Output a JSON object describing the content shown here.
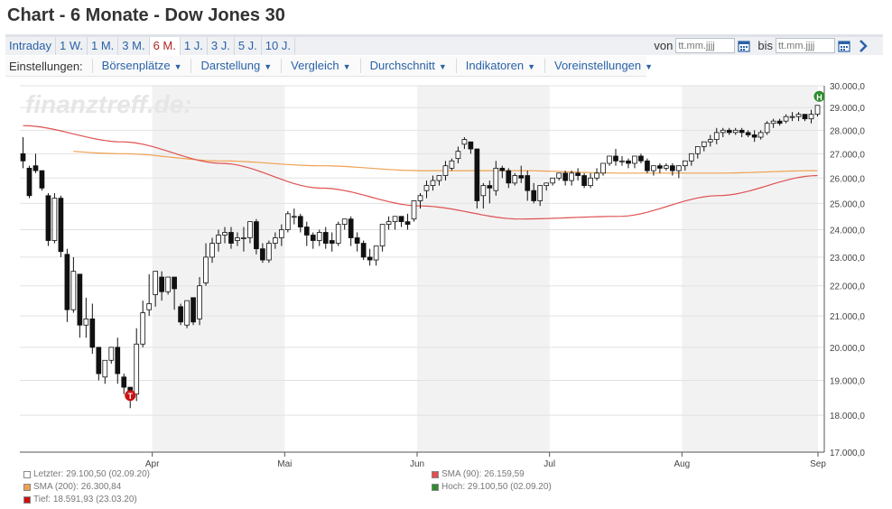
{
  "title": "Chart - 6 Monate - Dow Jones 30",
  "ranges": [
    "Intraday",
    "1 W.",
    "1 M.",
    "3 M.",
    "6 M.",
    "1 J.",
    "3 J.",
    "5 J.",
    "10 J."
  ],
  "active_range": "6 M.",
  "date_from_label": "von",
  "date_to_label": "bis",
  "date_placeholder": "tt.mm.jjjj",
  "settings_label": "Einstellungen:",
  "menu": [
    "Börsenplätze",
    "Darstellung",
    "Vergleich",
    "Durchschnitt",
    "Indikatoren",
    "Voreinstellungen"
  ],
  "watermark": "finanztreff.de:",
  "legend": {
    "last": "Letzter: 29.100,50 (02.09.20)",
    "sma200": "SMA (200): 26.300,84",
    "low": "Tief: 18.591,93 (23.03.20)",
    "sma90": "SMA (90): 26.159,59",
    "high": "Hoch: 29.100,50 (02.09.20)"
  },
  "colors": {
    "sma200": "#f0a050",
    "sma90": "#e05050",
    "high_marker": "#2e8b2e",
    "low_marker": "#cc1111",
    "band": "#f2f2f2",
    "link": "#2a62a8"
  },
  "chart_data": {
    "type": "candlestick",
    "ylim": [
      17000,
      30000
    ],
    "y_ticks": [
      17000,
      18000,
      19000,
      20000,
      21000,
      22000,
      23000,
      24000,
      25000,
      26000,
      27000,
      28000,
      29000,
      30000
    ],
    "y_tick_labels": [
      "17.000,0",
      "18.000,0",
      "19.000,0",
      "20.000,0",
      "21.000,0",
      "22.000,0",
      "23.000,0",
      "24.000,0",
      "25.000,0",
      "26.000,0",
      "27.000,0",
      "28.000,0",
      "29.000,0",
      "30.000,0"
    ],
    "x_month_labels": [
      "Apr",
      "Mai",
      "Jun",
      "Jul",
      "Aug",
      "Sep"
    ],
    "candles": [
      [
        27000,
        27700,
        26700,
        26400
      ],
      [
        26400,
        26500,
        25300,
        25200
      ],
      [
        26500,
        27000,
        26300,
        26200
      ],
      [
        26300,
        26300,
        25600,
        25500
      ],
      [
        25300,
        25400,
        23600,
        23400
      ],
      [
        23600,
        25400,
        25200,
        23500
      ],
      [
        25200,
        25300,
        23200,
        23000
      ],
      [
        23100,
        23300,
        21200,
        20800
      ],
      [
        21200,
        23000,
        22500,
        21100
      ],
      [
        22400,
        22400,
        20700,
        20300
      ],
      [
        20700,
        21600,
        20900,
        20300
      ],
      [
        20900,
        21400,
        20000,
        19800
      ],
      [
        20000,
        20000,
        19200,
        19000
      ],
      [
        19100,
        19600,
        19600,
        18900
      ],
      [
        19600,
        19800,
        20000,
        19500
      ],
      [
        20000,
        20300,
        19200,
        18900
      ],
      [
        19100,
        19200,
        18800,
        18600
      ],
      [
        18800,
        18800,
        18600,
        18200
      ],
      [
        18600,
        20600,
        20100,
        18400
      ],
      [
        20100,
        21500,
        21100,
        20000
      ],
      [
        21200,
        22400,
        21400,
        21000
      ],
      [
        21700,
        22400,
        22500,
        21300
      ],
      [
        22300,
        22500,
        21800,
        21500
      ],
      [
        21800,
        22200,
        22300,
        21700
      ],
      [
        22300,
        22100,
        21900,
        21200
      ],
      [
        21300,
        21400,
        20800,
        20700
      ],
      [
        20700,
        20900,
        21500,
        20600
      ],
      [
        21600,
        21300,
        20800,
        20700
      ],
      [
        20900,
        22300,
        22000,
        20700
      ],
      [
        22100,
        23500,
        23000,
        22000
      ],
      [
        23000,
        23700,
        23500,
        22800
      ],
      [
        23500,
        24000,
        23800,
        23200
      ],
      [
        23800,
        24100,
        23900,
        23500
      ],
      [
        23900,
        24100,
        23500,
        23300
      ],
      [
        23600,
        23900,
        23700,
        23400
      ],
      [
        23700,
        24100,
        23700,
        23200
      ],
      [
        23700,
        24300,
        24300,
        23500
      ],
      [
        24300,
        24400,
        23300,
        23100
      ],
      [
        23300,
        23500,
        22900,
        22800
      ],
      [
        22900,
        23600,
        23500,
        22800
      ],
      [
        23500,
        23900,
        23700,
        23300
      ],
      [
        23700,
        24200,
        24000,
        23400
      ],
      [
        24000,
        24700,
        24600,
        23900
      ],
      [
        24500,
        24800,
        24500,
        24200
      ],
      [
        24500,
        24600,
        24100,
        23900
      ],
      [
        24100,
        24300,
        23800,
        23400
      ],
      [
        23800,
        23900,
        23600,
        23300
      ],
      [
        23600,
        24000,
        23900,
        23400
      ],
      [
        23900,
        24100,
        23500,
        23300
      ],
      [
        23600,
        23900,
        23500,
        23200
      ],
      [
        23500,
        24300,
        24200,
        23400
      ],
      [
        24200,
        24300,
        24400,
        24000
      ],
      [
        24400,
        24500,
        23700,
        23400
      ],
      [
        23700,
        23900,
        23500,
        23200
      ],
      [
        23500,
        23600,
        23000,
        22900
      ],
      [
        23000,
        23300,
        22900,
        22700
      ],
      [
        22900,
        23200,
        23400,
        22700
      ],
      [
        23400,
        23600,
        24200,
        23200
      ],
      [
        24200,
        24500,
        24300,
        24000
      ],
      [
        24300,
        24500,
        24500,
        24000
      ],
      [
        24500,
        24500,
        24300,
        24100
      ],
      [
        24300,
        24600,
        24200,
        24000
      ],
      [
        24400,
        24800,
        25100,
        24300
      ],
      [
        25100,
        25400,
        25300,
        24800
      ],
      [
        25500,
        25900,
        25700,
        25200
      ],
      [
        25700,
        26100,
        25900,
        25500
      ],
      [
        25900,
        26100,
        26100,
        25700
      ],
      [
        26100,
        26700,
        26500,
        25900
      ],
      [
        26400,
        26800,
        26700,
        26300
      ],
      [
        26800,
        27300,
        27100,
        26600
      ],
      [
        27400,
        27700,
        27600,
        27200
      ],
      [
        27500,
        27500,
        27200,
        27000
      ],
      [
        27200,
        27000,
        25100,
        24800
      ],
      [
        25300,
        25800,
        25700,
        24800
      ],
      [
        25700,
        25900,
        25600,
        25000
      ],
      [
        25500,
        26700,
        26400,
        25300
      ],
      [
        26400,
        26500,
        26300,
        26000
      ],
      [
        26300,
        26400,
        25800,
        25600
      ],
      [
        25800,
        26200,
        26100,
        25700
      ],
      [
        26100,
        26500,
        26000,
        25800
      ],
      [
        26100,
        26300,
        25500,
        25100
      ],
      [
        25500,
        25800,
        25100,
        25000
      ],
      [
        25100,
        25400,
        25700,
        24900
      ],
      [
        25700,
        25800,
        25800,
        25500
      ],
      [
        25800,
        26000,
        26000,
        25700
      ],
      [
        26000,
        26100,
        26200,
        25900
      ],
      [
        26200,
        26300,
        25900,
        25700
      ],
      [
        25900,
        26300,
        26200,
        25700
      ],
      [
        26200,
        26400,
        26100,
        25900
      ],
      [
        26100,
        26200,
        25700,
        25600
      ],
      [
        25700,
        26200,
        26000,
        25600
      ],
      [
        26000,
        26400,
        26200,
        25900
      ],
      [
        26200,
        26400,
        26600,
        26100
      ],
      [
        26600,
        26800,
        26900,
        26500
      ],
      [
        26900,
        27200,
        26700,
        26500
      ],
      [
        26700,
        26900,
        26700,
        26500
      ],
      [
        26700,
        26800,
        26600,
        26400
      ],
      [
        26600,
        26800,
        26900,
        26400
      ],
      [
        26900,
        27000,
        26700,
        26600
      ],
      [
        26700,
        26800,
        26300,
        26200
      ],
      [
        26300,
        26500,
        26500,
        26100
      ],
      [
        26500,
        26600,
        26400,
        26200
      ],
      [
        26400,
        26600,
        26500,
        26300
      ],
      [
        26500,
        26600,
        26300,
        26100
      ],
      [
        26300,
        26500,
        26500,
        26000
      ],
      [
        26500,
        26700,
        26700,
        26300
      ],
      [
        26700,
        26900,
        27000,
        26500
      ],
      [
        27000,
        27300,
        27300,
        26800
      ],
      [
        27300,
        27500,
        27500,
        27100
      ],
      [
        27500,
        27800,
        27600,
        27300
      ],
      [
        27600,
        28100,
        27900,
        27400
      ],
      [
        27900,
        28100,
        28000,
        27700
      ],
      [
        28000,
        28100,
        27900,
        27800
      ],
      [
        27900,
        28100,
        28000,
        27800
      ],
      [
        28000,
        28100,
        27900,
        27700
      ],
      [
        27900,
        28000,
        27800,
        27700
      ],
      [
        27800,
        28000,
        27700,
        27500
      ],
      [
        27700,
        28000,
        27900,
        27600
      ],
      [
        27900,
        28400,
        28300,
        27800
      ],
      [
        28300,
        28500,
        28400,
        28100
      ],
      [
        28400,
        28500,
        28300,
        28200
      ],
      [
        28400,
        28700,
        28600,
        28300
      ],
      [
        28600,
        28800,
        28600,
        28400
      ],
      [
        28600,
        28800,
        28700,
        28400
      ],
      [
        28700,
        28700,
        28500,
        28400
      ],
      [
        28500,
        28900,
        28700,
        28300
      ],
      [
        28700,
        29100,
        29100,
        28600
      ]
    ],
    "sma90_trend": [
      28200,
      27500,
      26600,
      25600,
      24900,
      24400,
      24500,
      25300,
      26100
    ],
    "sma200_trend": [
      27200,
      27000,
      26700,
      26500,
      26300,
      26300,
      26200,
      26200,
      26300
    ],
    "high": {
      "label": "H",
      "value": 29100.5
    },
    "low": {
      "label": "T",
      "value": 18591.93
    }
  }
}
